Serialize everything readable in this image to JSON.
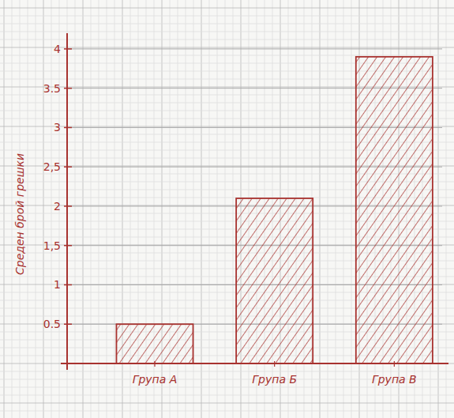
{
  "chart_data": {
    "type": "bar",
    "y_label": "Среден брой грешки",
    "categories": [
      "Група А",
      "Група Б",
      "Група В"
    ],
    "values": [
      0.5,
      2.1,
      3.9
    ],
    "color": "#a8322f",
    "ylim": [
      0,
      4.2
    ],
    "yticks": [
      0.5,
      1,
      {
        "value": 1.5,
        "label": "1,5"
      },
      2,
      {
        "value": 2.5,
        "label": "2,5"
      },
      3,
      3.5,
      4
    ],
    "grid": true
  }
}
